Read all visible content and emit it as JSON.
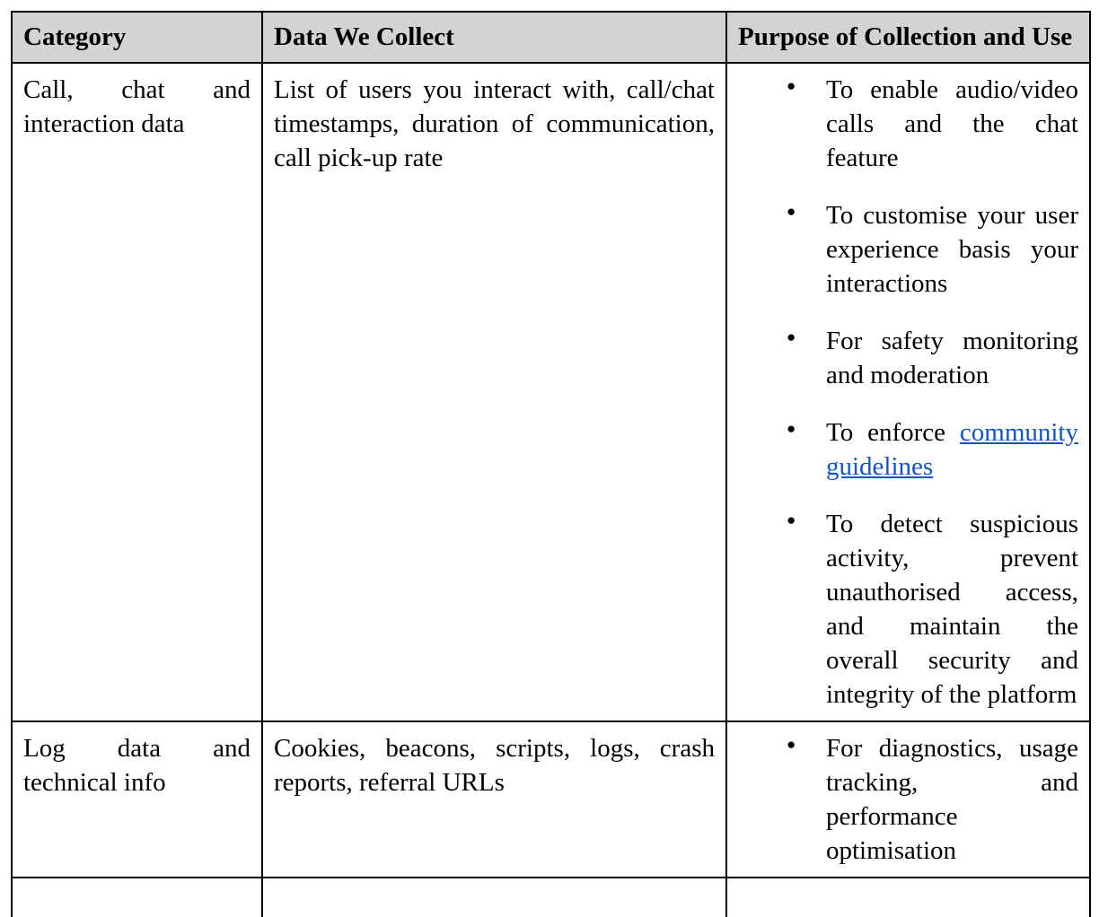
{
  "table": {
    "columns": [
      "Category",
      "Data We Collect",
      "Purpose of Collection and Use"
    ],
    "rows": [
      {
        "category": "Call, chat and interaction data",
        "data_we_collect": "List of users you interact with, call/chat timestamps, duration of communication, call pick-up rate",
        "purposes": [
          {
            "text": "To enable audio/video calls and the chat feature"
          },
          {
            "text": "To customise your user experience basis your interactions"
          },
          {
            "text": "For safety monitoring and moderation"
          },
          {
            "text": "To enforce ",
            "link_text": "community guidelines"
          },
          {
            "text": "To detect suspicious activity, prevent unauthorised access, and maintain the overall security and integrity of the platform"
          }
        ]
      },
      {
        "category": "Log data and technical info",
        "data_we_collect": "Cookies, beacons, scripts, logs, crash reports, referral URLs",
        "purposes": [
          {
            "text": "For diagnostics, usage tracking, and performance optimisation"
          }
        ]
      }
    ]
  },
  "colors": {
    "header_background": "#d3d3d3",
    "border": "#000000",
    "text": "#000000",
    "link": "#1155cc"
  }
}
